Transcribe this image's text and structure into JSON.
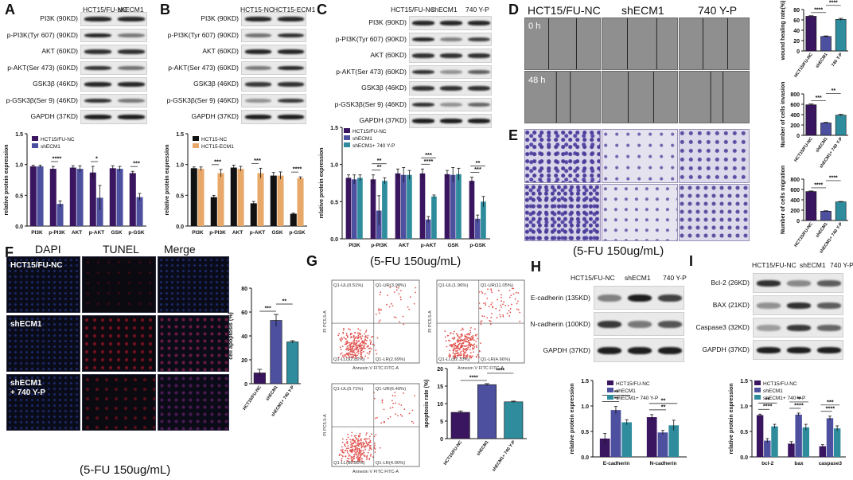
{
  "panels": {
    "A": {
      "letter": "A",
      "columns": [
        "HCT15/FU-NC",
        "shECM1"
      ],
      "rows": [
        {
          "label": "PI3K (90KD)",
          "bands": [
            0.9,
            0.9
          ]
        },
        {
          "label": "p-PI3K(Tyr 607) (90KD)",
          "bands": [
            0.9,
            0.45
          ]
        },
        {
          "label": "AKT (60KD)",
          "bands": [
            0.85,
            0.85
          ]
        },
        {
          "label": "p-AKT(Ser 473) (60KD)",
          "bands": [
            0.85,
            0.5
          ]
        },
        {
          "label": "GSK3β (46KD)",
          "bands": [
            0.9,
            0.9
          ]
        },
        {
          "label": "p-GSK3β(Ser 9) (46KD)",
          "bands": [
            0.85,
            0.45
          ]
        },
        {
          "label": "GAPDH (37KD)",
          "bands": [
            0.95,
            0.95
          ]
        }
      ]
    },
    "B": {
      "letter": "B",
      "columns": [
        "HCT15-NC",
        "HCT15-ECM1"
      ],
      "rows": [
        {
          "label": "PI3K (90KD)",
          "bands": [
            0.9,
            0.9
          ]
        },
        {
          "label": "p-PI3K(Tyr 607) (90KD)",
          "bands": [
            0.5,
            0.85
          ]
        },
        {
          "label": "AKT (60KD)",
          "bands": [
            0.9,
            0.9
          ]
        },
        {
          "label": "p-AKT(Ser 473) (60KD)",
          "bands": [
            0.45,
            0.9
          ]
        },
        {
          "label": "GSK3β (46KD)",
          "bands": [
            0.8,
            0.85
          ]
        },
        {
          "label": "p-GSK3β(Ser 9) (46KD)",
          "bands": [
            0.3,
            0.8
          ]
        },
        {
          "label": "GAPDH (37KD)",
          "bands": [
            0.95,
            0.95
          ]
        }
      ]
    },
    "C": {
      "letter": "C",
      "columns": [
        "HCT15/FU-NC",
        "shECM1",
        "740 Y-P"
      ],
      "rows": [
        {
          "label": "PI3K (90KD)",
          "bands": [
            0.9,
            0.9,
            0.9
          ]
        },
        {
          "label": "p-PI3K(Tyr 607) (90KD)",
          "bands": [
            0.9,
            0.4,
            0.75
          ]
        },
        {
          "label": "AKT (60KD)",
          "bands": [
            0.85,
            0.85,
            0.85
          ]
        },
        {
          "label": "p-AKT(Ser 473) (60KD)",
          "bands": [
            0.85,
            0.3,
            0.6
          ]
        },
        {
          "label": "GSK3β (46KD)",
          "bands": [
            0.85,
            0.85,
            0.85
          ]
        },
        {
          "label": "p-GSK3β(Ser 9) (46KD)",
          "bands": [
            0.85,
            0.3,
            0.55
          ]
        },
        {
          "label": "GAPDH (37KD)",
          "bands": [
            0.95,
            0.95,
            0.95
          ]
        }
      ]
    },
    "D": {
      "letter": "D",
      "columns": [
        "HCT15/FU-NC",
        "shECM1",
        "740 Y-P"
      ],
      "times": [
        "0 h",
        "48 h"
      ]
    },
    "E": {
      "letter": "E",
      "caption": "(5-FU 150ug/mL)"
    },
    "F": {
      "letter": "F",
      "columns": [
        "DAPI",
        "TUNEL",
        "Merge"
      ],
      "rows": [
        "HCT15/FU-NC",
        "shECM1",
        "shECM1\n+ 740 Y-P"
      ],
      "caption": "(5-FU 150ug/mL)"
    },
    "G": {
      "letter": "G",
      "caption": "(5-FU 150ug/mL)",
      "plots": [
        {
          "ul": "Q1-UL(0.51%)",
          "ur": "Q1-UR(3.98%)",
          "ll": "Q1-LL(92.82%)",
          "lr": "Q1-LR(2.69%)"
        },
        {
          "ul": "Q1-UL(1.96%)",
          "ur": "Q1-UR(11.05%)",
          "ll": "Q1-LL(82.33%)",
          "lr": "Q1-LR(4.66%)"
        },
        {
          "ul": "Q1-UL(0.71%)",
          "ur": "Q1-UR(6.49%)",
          "ll": "Q1-LL(88.80%)",
          "lr": "Q1-LR(4.00%)"
        }
      ],
      "xaxis": "Annexin V FITC FITC-A",
      "yaxis": "PI PC5.5-A"
    },
    "H": {
      "letter": "H",
      "columns": [
        "HCT15/FU-NC",
        "shECM1",
        "740 Y-P"
      ],
      "rows": [
        {
          "label": "E-cadherin (135KD)",
          "bands": [
            0.4,
            0.95,
            0.75
          ]
        },
        {
          "label": "N-cadherin (100KD)",
          "bands": [
            0.8,
            0.45,
            0.65
          ]
        },
        {
          "label": "GAPDH (37KD)",
          "bands": [
            0.95,
            0.95,
            0.95
          ]
        }
      ]
    },
    "I": {
      "letter": "I",
      "columns": [
        "HCT15/FU-NC",
        "shECM1",
        "740 Y-P"
      ],
      "rows": [
        {
          "label": "Bcl-2 (26KD)",
          "bands": [
            0.85,
            0.35,
            0.6
          ]
        },
        {
          "label": "BAX (21KD)",
          "bands": [
            0.3,
            0.85,
            0.6
          ]
        },
        {
          "label": "Caspase3 (32KD)",
          "bands": [
            0.25,
            0.8,
            0.55
          ]
        },
        {
          "label": "GAPDH (37KD)",
          "bands": [
            0.95,
            0.95,
            0.95
          ]
        }
      ]
    }
  },
  "colors": {
    "purple": "#3a1560",
    "blue": "#4d4f9f",
    "teal": "#2e8c9c",
    "black": "#111111",
    "orange": "#e8a86a"
  },
  "chart_data": [
    {
      "id": "A",
      "type": "bar",
      "ylabel": "relative protein expression",
      "ylim": [
        0,
        1.5
      ],
      "yticks": [
        "0.0",
        "0.5",
        "1.0",
        "1.5"
      ],
      "categories": [
        "PI3K",
        "p-PI3K",
        "AKT",
        "p-AKT",
        "GSK",
        "p-GSK"
      ],
      "series": [
        {
          "name": "HCT15/FU-NC",
          "values": [
            0.97,
            0.93,
            0.95,
            0.87,
            0.94,
            0.86
          ],
          "err": [
            0.02,
            0.04,
            0.03,
            0.1,
            0.04,
            0.03
          ]
        },
        {
          "name": "shECM1",
          "values": [
            0.97,
            0.36,
            0.93,
            0.46,
            0.93,
            0.47
          ],
          "err": [
            0.02,
            0.05,
            0.05,
            0.2,
            0.04,
            0.06
          ]
        }
      ],
      "sig": [
        {
          "cat": 1,
          "label": "****"
        },
        {
          "cat": 3,
          "label": "*"
        },
        {
          "cat": 5,
          "label": "***"
        }
      ]
    },
    {
      "id": "B",
      "type": "bar",
      "ylabel": "relative protein expression",
      "ylim": [
        0,
        1.5
      ],
      "yticks": [
        "0.0",
        "0.5",
        "1.0",
        "1.5"
      ],
      "categories": [
        "PI3K",
        "p-PI3K",
        "AKT",
        "p-AKT",
        "GSK",
        "p-GSK"
      ],
      "series": [
        {
          "name": "HCT15-NC",
          "values": [
            0.94,
            0.47,
            0.95,
            0.37,
            0.82,
            0.2
          ],
          "err": [
            0.02,
            0.03,
            0.04,
            0.03,
            0.05,
            0.01
          ]
        },
        {
          "name": "HCT15-ECM1",
          "values": [
            0.93,
            0.86,
            0.93,
            0.86,
            0.82,
            0.78
          ],
          "err": [
            0.03,
            0.06,
            0.04,
            0.08,
            0.06,
            0.02
          ]
        }
      ],
      "sig": [
        {
          "cat": 1,
          "label": "***"
        },
        {
          "cat": 3,
          "label": "***"
        },
        {
          "cat": 5,
          "label": "****"
        }
      ]
    },
    {
      "id": "C",
      "type": "bar",
      "ylabel": "relative protein expression",
      "ylim": [
        0,
        1.5
      ],
      "yticks": [
        "0.0",
        "0.5",
        "1.0",
        "1.5"
      ],
      "categories": [
        "PI3K",
        "p-PI3K",
        "AKT",
        "p-AKT",
        "GSK",
        "p-GSK"
      ],
      "series": [
        {
          "name": "HCT15/FU-NC",
          "values": [
            0.82,
            0.8,
            0.88,
            0.88,
            0.87,
            0.78
          ],
          "err": [
            0.04,
            0.06,
            0.06,
            0.06,
            0.05,
            0.05
          ]
        },
        {
          "name": "shECM1",
          "values": [
            0.8,
            0.38,
            0.86,
            0.26,
            0.86,
            0.27
          ],
          "err": [
            0.06,
            0.2,
            0.1,
            0.04,
            0.1,
            0.05
          ]
        },
        {
          "name": "shECM1+ 740 Y-P",
          "values": [
            0.82,
            0.78,
            0.86,
            0.57,
            0.87,
            0.5
          ],
          "err": [
            0.04,
            0.04,
            0.06,
            0.02,
            0.08,
            0.07
          ]
        }
      ],
      "sig": [
        {
          "cat": 1,
          "label": "**"
        },
        {
          "cat": 1,
          "label": "**"
        },
        {
          "cat": 3,
          "label": "****"
        },
        {
          "cat": 3,
          "label": "***"
        },
        {
          "cat": 5,
          "label": "***"
        },
        {
          "cat": 5,
          "label": "**"
        }
      ]
    },
    {
      "id": "D",
      "type": "bar",
      "ylabel": "wound healing rate(%)",
      "ylim": [
        0,
        80
      ],
      "yticks": [
        "0",
        "20",
        "40",
        "60",
        "80"
      ],
      "categories": [
        "HCT15/FU-NC",
        "shECM1",
        "740 Y-P"
      ],
      "values": [
        67,
        28,
        61
      ],
      "err": [
        1,
        1,
        2
      ],
      "sig": [
        "****",
        "****"
      ]
    },
    {
      "id": "E1",
      "type": "bar",
      "ylabel": "Number of cells invasion",
      "ylim": [
        0,
        800
      ],
      "yticks": [
        "0",
        "200",
        "400",
        "600",
        "800"
      ],
      "categories": [
        "HCT15/FU-NC",
        "shECM1",
        "shECM1+ 740 Y-P"
      ],
      "values": [
        590,
        240,
        390
      ],
      "err": [
        15,
        10,
        15
      ],
      "sig": [
        "***",
        "**"
      ]
    },
    {
      "id": "E2",
      "type": "bar",
      "ylabel": "Number of cells migration",
      "ylim": [
        0,
        800
      ],
      "yticks": [
        "0",
        "200",
        "400",
        "600",
        "800"
      ],
      "categories": [
        "HCT15/FU-NC",
        "shECM1",
        "shECM1+ 740 Y-P"
      ],
      "values": [
        560,
        180,
        360
      ],
      "err": [
        10,
        8,
        8
      ],
      "sig": [
        "****",
        "****"
      ]
    },
    {
      "id": "F",
      "type": "bar",
      "ylabel": "cell apoptosis (%)",
      "ylim": [
        0,
        80
      ],
      "yticks": [
        "0",
        "20",
        "40",
        "60",
        "80"
      ],
      "categories": [
        "HCT15/FU-NC",
        "shECM1",
        "shECM1+ 740 Y-P"
      ],
      "values": [
        9,
        53,
        35
      ],
      "err": [
        3,
        5,
        1
      ],
      "sig": [
        "***",
        "**"
      ]
    },
    {
      "id": "G",
      "type": "bar",
      "ylabel": "apoptosis rate (%)",
      "ylim": [
        0,
        20
      ],
      "yticks": [
        "0",
        "5",
        "10",
        "15",
        "20"
      ],
      "categories": [
        "HCT15/FU-NC",
        "shECM1",
        "shECM1+ 740 Y-P"
      ],
      "values": [
        7.5,
        15.4,
        10.5
      ],
      "err": [
        0.4,
        0.3,
        0.2
      ],
      "sig": [
        "****",
        "****"
      ]
    },
    {
      "id": "H",
      "type": "bar",
      "ylabel": "relative protein expression",
      "ylim": [
        0,
        1.5
      ],
      "yticks": [
        "0.0",
        "0.5",
        "1.0",
        "1.5"
      ],
      "categories": [
        "E-cadherin",
        "N-cadherin"
      ],
      "series": [
        {
          "name": "HCT15/FU-NC",
          "values": [
            0.36,
            0.78
          ],
          "err": [
            0.1,
            0.05
          ]
        },
        {
          "name": "shECM1",
          "values": [
            0.92,
            0.48
          ],
          "err": [
            0.07,
            0.04
          ]
        },
        {
          "name": "shECM1+ 740 Y-P",
          "values": [
            0.68,
            0.62
          ],
          "err": [
            0.05,
            0.1
          ]
        }
      ],
      "sig": [
        {
          "cat": 0,
          "label": "**"
        },
        {
          "cat": 0,
          "label": "**"
        },
        {
          "cat": 1,
          "label": "**"
        },
        {
          "cat": 1,
          "label": "**"
        }
      ]
    },
    {
      "id": "I",
      "type": "bar",
      "ylabel": "relative protein expression",
      "ylim": [
        0,
        1.5
      ],
      "yticks": [
        "0.0",
        "0.5",
        "1.0",
        "1.5"
      ],
      "categories": [
        "bcl-2",
        "bax",
        "caspase3"
      ],
      "series": [
        {
          "name": "HCT15/FU-NC",
          "values": [
            0.82,
            0.26,
            0.21
          ],
          "err": [
            0.02,
            0.04,
            0.03
          ]
        },
        {
          "name": "shECM1",
          "values": [
            0.32,
            0.83,
            0.76
          ],
          "err": [
            0.04,
            0.03,
            0.04
          ]
        },
        {
          "name": "shECM1+ 740 Y-P",
          "values": [
            0.6,
            0.58,
            0.56
          ],
          "err": [
            0.04,
            0.06,
            0.05
          ]
        }
      ],
      "sig": [
        {
          "cat": 0,
          "label": "****"
        },
        {
          "cat": 0,
          "label": "**"
        },
        {
          "cat": 1,
          "label": "****"
        },
        {
          "cat": 1,
          "label": "**"
        },
        {
          "cat": 2,
          "label": "****"
        },
        {
          "cat": 2,
          "label": "***"
        }
      ]
    }
  ]
}
